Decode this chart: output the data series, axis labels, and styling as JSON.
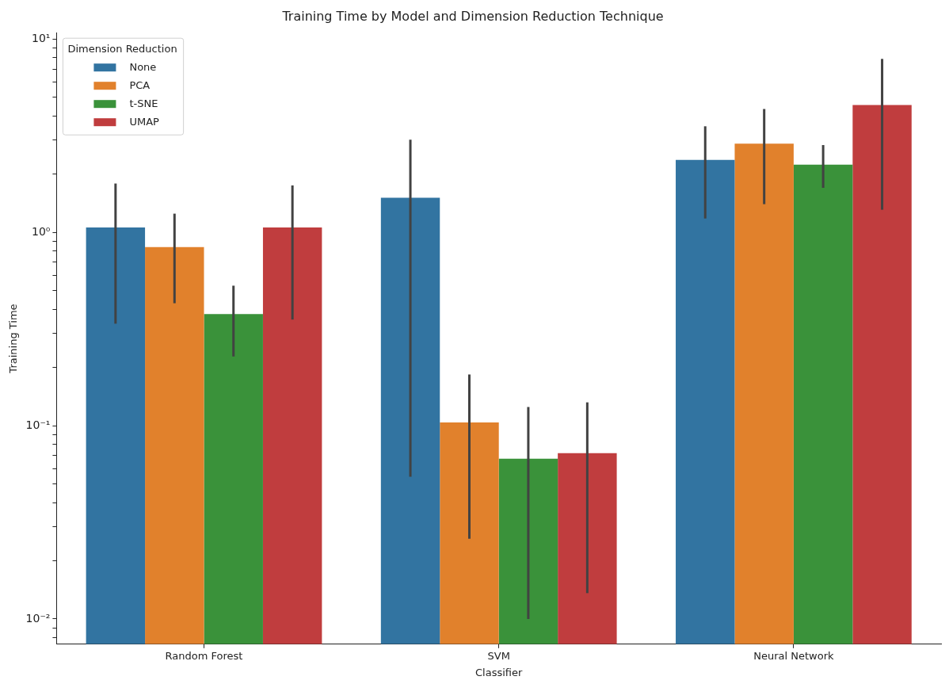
{
  "chart_data": {
    "type": "bar",
    "title": "Training Time by Model and Dimension Reduction Technique",
    "xlabel": "Classifier",
    "ylabel": "Training Time",
    "legend_title": "Dimension Reduction",
    "legend": "top left",
    "log": "y",
    "grid": false,
    "categories": [
      "Random Forest",
      "SVM",
      "Neural Network"
    ],
    "ylim": [
      0.0074,
      10.8
    ],
    "yticks": [
      {
        "value": 0.008,
        "label": null
      },
      {
        "value": 0.009,
        "label": null
      },
      {
        "value": 0.01,
        "label": "10⁻²"
      },
      {
        "value": 0.02,
        "label": null
      },
      {
        "value": 0.03,
        "label": null
      },
      {
        "value": 0.04,
        "label": null
      },
      {
        "value": 0.05,
        "label": null
      },
      {
        "value": 0.06,
        "label": null
      },
      {
        "value": 0.07,
        "label": null
      },
      {
        "value": 0.08,
        "label": null
      },
      {
        "value": 0.09,
        "label": null
      },
      {
        "value": 0.1,
        "label": "10⁻¹"
      },
      {
        "value": 0.2,
        "label": null
      },
      {
        "value": 0.3,
        "label": null
      },
      {
        "value": 0.4,
        "label": null
      },
      {
        "value": 0.5,
        "label": null
      },
      {
        "value": 0.6,
        "label": null
      },
      {
        "value": 0.7,
        "label": null
      },
      {
        "value": 0.8,
        "label": null
      },
      {
        "value": 0.9,
        "label": null
      },
      {
        "value": 1,
        "label": "10⁰"
      },
      {
        "value": 2,
        "label": null
      },
      {
        "value": 3,
        "label": null
      },
      {
        "value": 4,
        "label": null
      },
      {
        "value": 5,
        "label": null
      },
      {
        "value": 6,
        "label": null
      },
      {
        "value": 7,
        "label": null
      },
      {
        "value": 8,
        "label": null
      },
      {
        "value": 9,
        "label": null
      },
      {
        "value": 10,
        "label": "10¹"
      }
    ],
    "series": [
      {
        "name": "None",
        "color": "#3274a1",
        "values": [
          1.06,
          1.51,
          2.37
        ],
        "errors": [
          [
            0.337,
            1.79
          ],
          [
            0.0544,
            3.02
          ],
          [
            1.18,
            3.54
          ]
        ]
      },
      {
        "name": "PCA",
        "color": "#e1812c",
        "values": [
          0.84,
          0.104,
          2.88
        ],
        "errors": [
          [
            0.43,
            1.25
          ],
          [
            0.026,
            0.184
          ],
          [
            1.4,
            4.35
          ]
        ]
      },
      {
        "name": "t-SNE",
        "color": "#3a923a",
        "values": [
          0.378,
          0.0675,
          2.24
        ],
        "errors": [
          [
            0.228,
            0.53
          ],
          [
            0.01,
            0.125
          ],
          [
            1.7,
            2.83
          ]
        ]
      },
      {
        "name": "UMAP",
        "color": "#c03d3e",
        "values": [
          1.06,
          0.072,
          4.56
        ],
        "errors": [
          [
            0.354,
            1.75
          ],
          [
            0.0136,
            0.132
          ],
          [
            1.31,
            7.9
          ]
        ]
      }
    ]
  }
}
